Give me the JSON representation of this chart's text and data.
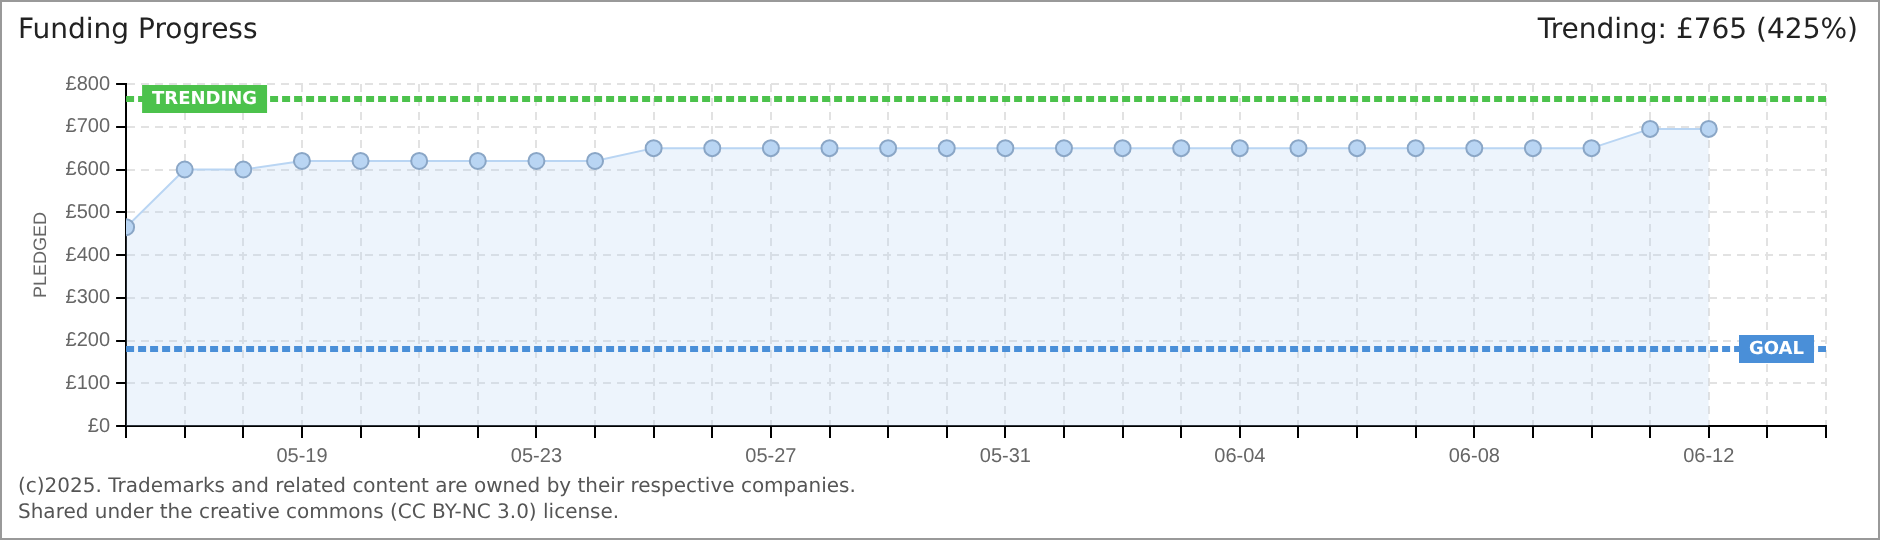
{
  "chart_data": {
    "type": "area",
    "title": "Funding Progress",
    "subtitle": "Trending: £765 (425%)",
    "ylabel": "PLEDGED",
    "x": [
      "2025-05-16",
      "2025-05-17",
      "2025-05-18",
      "2025-05-19",
      "2025-05-20",
      "2025-05-21",
      "2025-05-22",
      "2025-05-23",
      "2025-05-24",
      "2025-05-25",
      "2025-05-26",
      "2025-05-27",
      "2025-05-28",
      "2025-05-29",
      "2025-05-30",
      "2025-05-31",
      "2025-06-01",
      "2025-06-02",
      "2025-06-03",
      "2025-06-04",
      "2025-06-05",
      "2025-06-06",
      "2025-06-07",
      "2025-06-08",
      "2025-06-09",
      "2025-06-10",
      "2025-06-11",
      "2025-06-12"
    ],
    "series": [
      {
        "color": "#b9d5f3",
        "values": [
          465,
          600,
          600,
          620,
          620,
          620,
          620,
          620,
          620,
          650,
          650,
          650,
          650,
          650,
          650,
          650,
          650,
          650,
          650,
          650,
          650,
          650,
          650,
          650,
          650,
          650,
          695,
          695
        ]
      }
    ],
    "xlim": [
      "2025-05-16",
      "2025-06-14"
    ],
    "xticks": [
      {
        "value": "2025-05-16",
        "label": null
      },
      {
        "value": "2025-05-17",
        "label": null
      },
      {
        "value": "2025-05-18",
        "label": null
      },
      {
        "value": "2025-05-19",
        "label": "05-19"
      },
      {
        "value": "2025-05-20",
        "label": null
      },
      {
        "value": "2025-05-21",
        "label": null
      },
      {
        "value": "2025-05-22",
        "label": null
      },
      {
        "value": "2025-05-23",
        "label": "05-23"
      },
      {
        "value": "2025-05-24",
        "label": null
      },
      {
        "value": "2025-05-25",
        "label": null
      },
      {
        "value": "2025-05-26",
        "label": null
      },
      {
        "value": "2025-05-27",
        "label": "05-27"
      },
      {
        "value": "2025-05-28",
        "label": null
      },
      {
        "value": "2025-05-29",
        "label": null
      },
      {
        "value": "2025-05-30",
        "label": null
      },
      {
        "value": "2025-05-31",
        "label": "05-31"
      },
      {
        "value": "2025-06-01",
        "label": null
      },
      {
        "value": "2025-06-02",
        "label": null
      },
      {
        "value": "2025-06-03",
        "label": null
      },
      {
        "value": "2025-06-04",
        "label": "06-04"
      },
      {
        "value": "2025-06-05",
        "label": null
      },
      {
        "value": "2025-06-06",
        "label": null
      },
      {
        "value": "2025-06-07",
        "label": null
      },
      {
        "value": "2025-06-08",
        "label": "06-08"
      },
      {
        "value": "2025-06-09",
        "label": null
      },
      {
        "value": "2025-06-10",
        "label": null
      },
      {
        "value": "2025-06-11",
        "label": null
      },
      {
        "value": "2025-06-12",
        "label": "06-12"
      },
      {
        "value": "2025-06-13",
        "label": null
      },
      {
        "value": "2025-06-14",
        "label": null
      }
    ],
    "ylim": [
      0,
      800
    ],
    "yticks": [
      {
        "value": 0,
        "label": "£0"
      },
      {
        "value": 100,
        "label": "£100"
      },
      {
        "value": 200,
        "label": "£200"
      },
      {
        "value": 300,
        "label": "£300"
      },
      {
        "value": 400,
        "label": "£400"
      },
      {
        "value": 500,
        "label": "£500"
      },
      {
        "value": 600,
        "label": "£600"
      },
      {
        "value": 700,
        "label": "£700"
      },
      {
        "value": 800,
        "label": "£800"
      }
    ],
    "ref_lines": [
      {
        "axis": "y",
        "value": 765,
        "label": "TRENDING",
        "color": "#4cc24c",
        "line_style": "dashed"
      },
      {
        "axis": "y",
        "value": 180,
        "label": "GOAL",
        "color": "#4a8fd8",
        "line_style": "dashed"
      }
    ],
    "grid": true,
    "marker": "circle",
    "legend": false,
    "annotations": [
      "(c)2025. Trademarks and related content are owned by their respective companies.",
      "Shared under the creative commons (CC BY-NC 3.0) license."
    ]
  }
}
